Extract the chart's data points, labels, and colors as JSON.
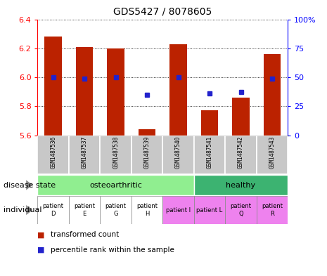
{
  "title": "GDS5427 / 8078605",
  "samples": [
    "GSM1487536",
    "GSM1487537",
    "GSM1487538",
    "GSM1487539",
    "GSM1487540",
    "GSM1487541",
    "GSM1487542",
    "GSM1487543"
  ],
  "red_values": [
    6.28,
    6.21,
    6.2,
    5.64,
    6.23,
    5.77,
    5.86,
    6.16
  ],
  "blue_values": [
    50,
    49,
    50,
    35,
    50,
    36,
    37,
    49
  ],
  "ylim": [
    5.6,
    6.4
  ],
  "yticks_left": [
    5.6,
    5.8,
    6.0,
    6.2,
    6.4
  ],
  "yticks_right": [
    0,
    25,
    50,
    75,
    100
  ],
  "disease_state_osteo_indices": [
    0,
    1,
    2,
    3,
    4
  ],
  "disease_state_healthy_indices": [
    5,
    6,
    7
  ],
  "disease_color_osteo": "#90EE90",
  "disease_color_healthy": "#3CB371",
  "individual_labels": [
    "patient\nD",
    "patient\nE",
    "patient\nG",
    "patient\nH",
    "patient I",
    "patient L",
    "patient\nQ",
    "patient\nR"
  ],
  "individual_colors": [
    "#FFFFFF",
    "#FFFFFF",
    "#FFFFFF",
    "#FFFFFF",
    "#EE82EE",
    "#EE82EE",
    "#EE82EE",
    "#EE82EE"
  ],
  "bar_color": "#BB2200",
  "dot_color": "#2222CC",
  "bar_bottom": 5.6,
  "sample_bg": "#C8C8C8",
  "label_disease_state": "disease state",
  "label_individual": "individual",
  "legend_red": "transformed count",
  "legend_blue": "percentile rank within the sample"
}
